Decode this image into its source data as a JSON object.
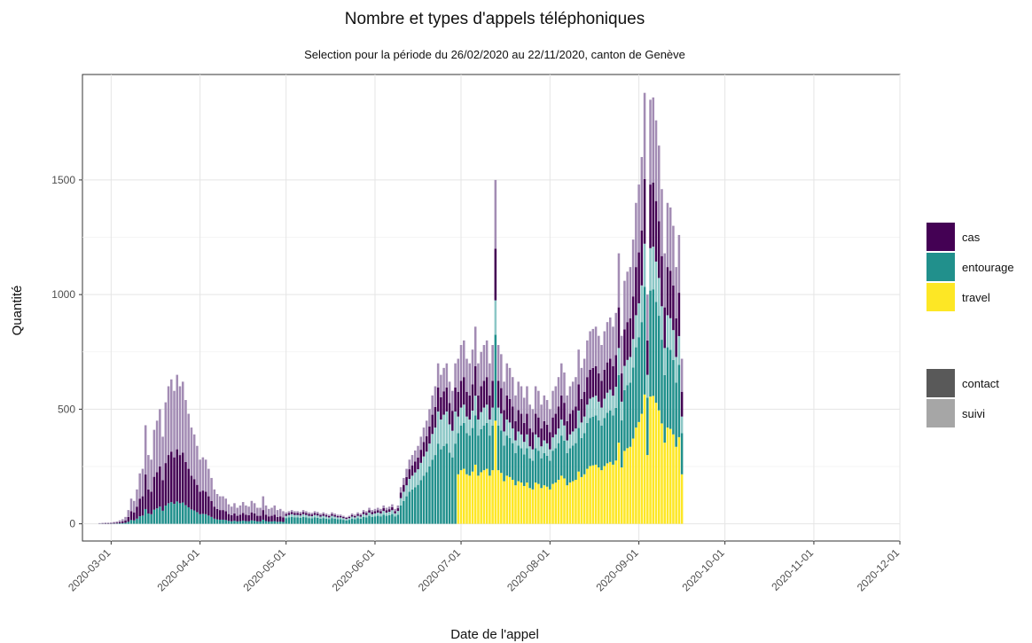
{
  "chart_data": {
    "type": "bar",
    "stacked": true,
    "title": "Nombre et types d'appels téléphoniques",
    "subtitle": "Selection pour la période du 26/02/2020 au 22/11/2020, canton de Genève",
    "xlabel": "Date de l'appel",
    "ylabel": "Quantité",
    "x_ticks": [
      "2020-03-01",
      "2020-04-01",
      "2020-05-01",
      "2020-06-01",
      "2020-07-01",
      "2020-08-01",
      "2020-09-01",
      "2020-10-01",
      "2020-11-01",
      "2020-12-01"
    ],
    "y_ticks": [
      0,
      500,
      1000,
      1500
    ],
    "xlim": [
      "2020-02-20",
      "2020-12-01"
    ],
    "ylim": [
      -75,
      1960
    ],
    "grid": true,
    "legend_position": "right",
    "legend_fill": [
      {
        "label": "cas",
        "color": "#440154"
      },
      {
        "label": "entourage",
        "color": "#21908c"
      },
      {
        "label": "travel",
        "color": "#fde725"
      }
    ],
    "legend_alpha": [
      {
        "label": "contact",
        "color": "#595959"
      },
      {
        "label": "suivi",
        "color": "#a6a6a6"
      }
    ],
    "approximate_daily_totals": [
      {
        "start": "2020-02-26",
        "values": [
          3,
          4,
          5,
          5,
          6,
          8,
          10,
          15,
          20,
          30,
          60,
          110,
          100,
          150,
          220,
          240,
          430,
          300,
          280,
          410,
          450,
          500,
          380,
          530,
          600,
          630,
          580,
          650,
          600,
          620,
          540,
          480,
          420,
          390,
          340,
          280,
          290,
          280,
          240,
          200,
          150,
          130,
          120,
          120,
          110,
          85,
          75,
          90,
          70,
          80,
          95,
          80,
          75,
          100,
          90,
          70,
          70,
          120,
          80,
          65,
          70,
          80,
          60,
          65,
          55,
          50,
          55,
          60,
          55,
          55,
          52,
          60,
          55,
          50,
          48,
          55,
          52,
          45,
          50,
          45,
          40,
          50,
          45,
          40,
          40,
          35,
          30,
          35,
          45,
          40,
          50,
          45,
          60,
          55,
          70,
          60,
          65,
          70,
          65,
          80,
          70,
          75,
          85,
          65,
          80,
          160,
          200,
          240,
          280,
          300,
          320,
          340,
          380,
          420,
          450,
          500,
          560,
          600,
          700,
          650,
          680,
          700,
          620,
          580,
          700,
          720,
          780,
          800,
          720,
          700,
          760,
          860,
          700,
          750,
          780,
          800,
          700,
          780,
          1500,
          780,
          740,
          620,
          700,
          680,
          640,
          560,
          620,
          600,
          550,
          600,
          520,
          500,
          600,
          580,
          520,
          560,
          540,
          500,
          580,
          600,
          640,
          700,
          660,
          560,
          600,
          620,
          640,
          760,
          680,
          720,
          800,
          840,
          850,
          860,
          820,
          780,
          840,
          880,
          900,
          860,
          920,
          1180,
          820,
          1060,
          1100,
          1120,
          1240,
          1400,
          1480,
          1600,
          1880,
          1000,
          1850,
          1860,
          1760,
          1650,
          1460,
          1180,
          1400,
          1380,
          1300,
          1120,
          1260,
          720
        ]
      },
      {
        "note": "stacked segments per day: cas (purple), entourage (teal), travel (yellow); darker = contact, lighter = suivi"
      }
    ]
  }
}
